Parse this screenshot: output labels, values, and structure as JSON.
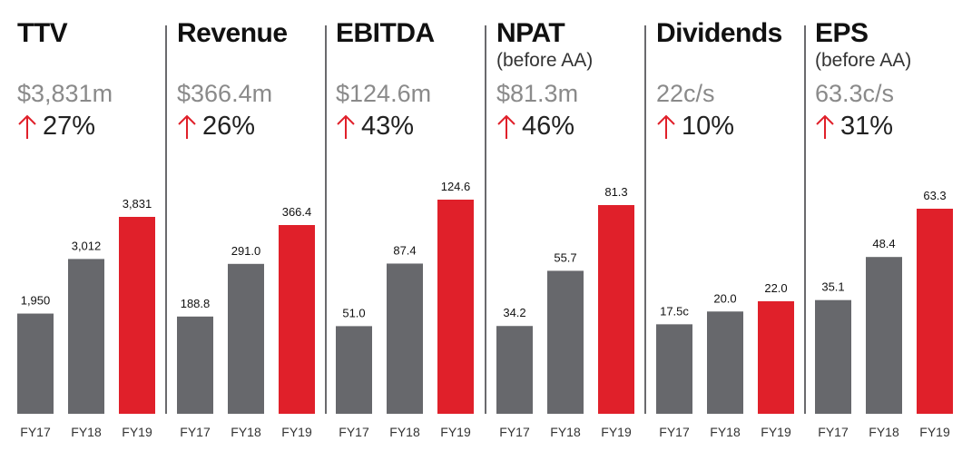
{
  "colors": {
    "past": "#67686c",
    "current": "#e0202a",
    "arrow": "#e0202a"
  },
  "chart_data": [
    {
      "type": "bar",
      "title": "TTV",
      "subtitle": "",
      "headline_value": "$3,831m",
      "growth": "27%",
      "categories": [
        "FY17",
        "FY18",
        "FY19"
      ],
      "values": [
        1950,
        3012,
        3831
      ],
      "labels": [
        "1,950",
        "3,012",
        "3,831"
      ]
    },
    {
      "type": "bar",
      "title": "Revenue",
      "subtitle": "",
      "headline_value": "$366.4m",
      "growth": "26%",
      "categories": [
        "FY17",
        "FY18",
        "FY19"
      ],
      "values": [
        188.8,
        291.0,
        366.4
      ],
      "labels": [
        "188.8",
        "291.0",
        "366.4"
      ]
    },
    {
      "type": "bar",
      "title": "EBITDA",
      "subtitle": "",
      "headline_value": "$124.6m",
      "growth": "43%",
      "categories": [
        "FY17",
        "FY18",
        "FY19"
      ],
      "values": [
        51.0,
        87.4,
        124.6
      ],
      "labels": [
        "51.0",
        "87.4",
        "124.6"
      ]
    },
    {
      "type": "bar",
      "title": "NPAT",
      "subtitle": "(before AA)",
      "headline_value": "$81.3m",
      "growth": "46%",
      "categories": [
        "FY17",
        "FY18",
        "FY19"
      ],
      "values": [
        34.2,
        55.7,
        81.3
      ],
      "labels": [
        "34.2",
        "55.7",
        "81.3"
      ]
    },
    {
      "type": "bar",
      "title": "Dividends",
      "subtitle": "",
      "headline_value": "22c/s",
      "growth": "10%",
      "categories": [
        "FY17",
        "FY18",
        "FY19"
      ],
      "values": [
        17.5,
        20.0,
        22.0
      ],
      "labels": [
        "17.5c",
        "20.0",
        "22.0"
      ]
    },
    {
      "type": "bar",
      "title": "EPS",
      "subtitle": "(before AA)",
      "headline_value": "63.3c/s",
      "growth": "31%",
      "categories": [
        "FY17",
        "FY18",
        "FY19"
      ],
      "values": [
        35.1,
        48.4,
        63.3
      ],
      "labels": [
        "35.1",
        "48.4",
        "63.3"
      ]
    }
  ]
}
